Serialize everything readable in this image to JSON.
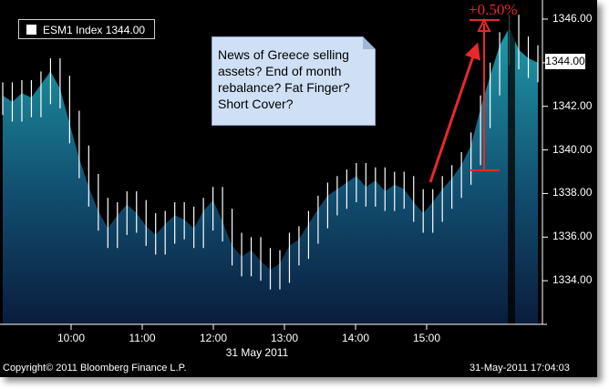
{
  "legend": {
    "series_label": "ESM1 Index 1344.00"
  },
  "annotation": {
    "callout_text": "News of Greece selling assets? End of month rebalance? Fat Finger? Short Cover?",
    "percent_change": "+0.50%"
  },
  "footer": {
    "copyright": "Copyright© 2011 Bloomberg Finance L.P.",
    "timestamp": "31-May-2011 17:04:03"
  },
  "axis": {
    "x_date_label": "31 May 2011",
    "current_value_label": "1344.00"
  },
  "colors": {
    "background": "#000000",
    "area_top": "#1f9aa8",
    "area_bottom": "#0a1d3d",
    "annotation": "#e8292a",
    "callout_bg": "#cfe0f5"
  },
  "chart_data": {
    "type": "area",
    "series": [
      {
        "name": "ESM1 Index",
        "values": [
          1342.5,
          1342.2,
          1342.6,
          1342.4,
          1343.0,
          1343.6,
          1342.8,
          1341.2,
          1339.6,
          1338.3,
          1337.2,
          1336.4,
          1337.0,
          1337.5,
          1337.1,
          1336.5,
          1336.1,
          1336.6,
          1337.0,
          1336.8,
          1336.4,
          1337.2,
          1337.7,
          1336.7,
          1335.6,
          1335.1,
          1335.4,
          1334.9,
          1334.5,
          1334.8,
          1335.6,
          1335.9,
          1336.6,
          1337.3,
          1337.9,
          1338.2,
          1338.5,
          1338.8,
          1338.3,
          1338.6,
          1338.1,
          1338.4,
          1338.2,
          1337.6,
          1337.1,
          1337.6,
          1338.2,
          1338.7,
          1339.3,
          1340.2,
          1341.9,
          1343.4,
          1344.8,
          1345.6,
          1344.6,
          1344.2,
          1344.0
        ]
      }
    ],
    "x_ticks": [
      "10:00",
      "11:00",
      "12:00",
      "13:00",
      "14:00",
      "15:00"
    ],
    "y_ticks": [
      "1334.00",
      "1336.00",
      "1338.00",
      "1340.00",
      "1342.00",
      "1344.00",
      "1346.00"
    ],
    "ylim": [
      1332.0,
      1346.5
    ],
    "grid": false,
    "legend_position": "top-left"
  }
}
